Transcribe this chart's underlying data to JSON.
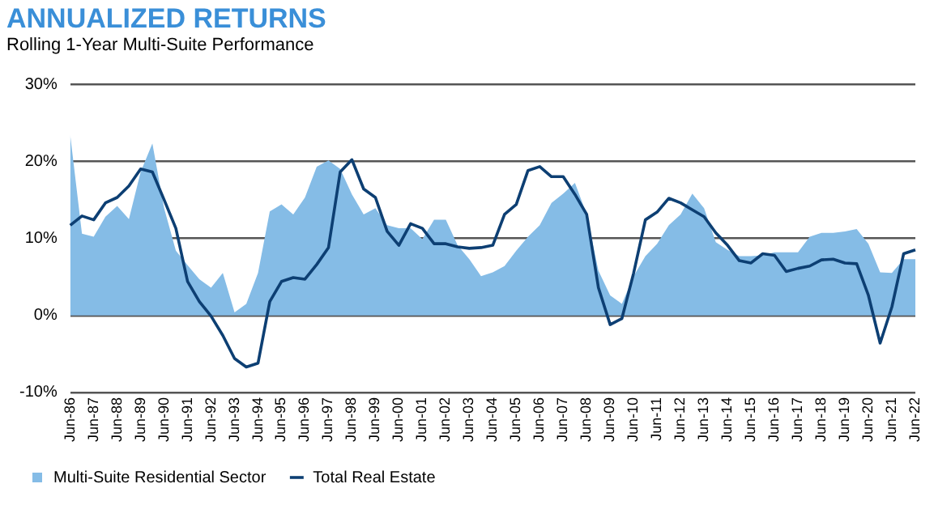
{
  "chart_data": {
    "type": "line",
    "title": "ANNUALIZED RETURNS",
    "subtitle": "Rolling 1-Year Multi-Suite Performance",
    "categories": [
      "Jun-86",
      null,
      "Jun-87",
      null,
      "Jun-88",
      null,
      "Jun-89",
      null,
      "Jun-90",
      null,
      "Jun-91",
      null,
      "Jun-92",
      null,
      "Jun-93",
      null,
      "Jun-94",
      null,
      "Jun-95",
      null,
      "Jun-96",
      null,
      "Jun-97",
      null,
      "Jun-98",
      null,
      "Jun-99",
      null,
      "Jun-00",
      null,
      "Jun-01",
      null,
      "Jun-02",
      null,
      "Jun-03",
      null,
      "Jun-04",
      null,
      "Jun-05",
      null,
      "Jun-06",
      null,
      "Jun-07",
      null,
      "Jun-08",
      null,
      "Jun-09",
      null,
      "Jun-10",
      null,
      "Jun-11",
      null,
      "Jun-12",
      null,
      "Jun-13",
      null,
      "Jun-14",
      null,
      "Jun-15",
      null,
      "Jun-16",
      null,
      "Jun-17",
      null,
      "Jun-18",
      null,
      "Jun-19",
      null,
      "Jun-20",
      null,
      "Jun-21",
      null,
      "Jun-22"
    ],
    "series": [
      {
        "name": "Multi-Suite Residential Sector",
        "type": "area",
        "color": "#85bce6",
        "values": [
          23.4,
          10.6,
          10.2,
          12.8,
          14.2,
          12.5,
          18.6,
          22.3,
          13.9,
          8.4,
          6.5,
          4.7,
          3.6,
          5.5,
          0.4,
          1.5,
          5.5,
          13.5,
          14.4,
          13.1,
          15.3,
          19.3,
          20.1,
          19.0,
          15.7,
          13.1,
          13.9,
          11.7,
          11.3,
          11.3,
          9.9,
          12.4,
          12.4,
          9.1,
          7.3,
          5.1,
          5.6,
          6.4,
          8.4,
          10.2,
          11.7,
          14.6,
          15.8,
          17.2,
          13.1,
          5.8,
          2.6,
          1.5,
          5.1,
          7.7,
          9.3,
          11.7,
          13.1,
          15.8,
          13.9,
          9.5,
          8.5,
          7.7,
          7.7,
          7.8,
          8.2,
          8.2,
          8.2,
          10.2,
          10.7,
          10.7,
          10.9,
          11.2,
          9.3,
          5.6,
          5.5,
          7.3,
          7.3
        ]
      },
      {
        "name": "Total Real Estate",
        "color": "#0d3f73",
        "values": [
          11.7,
          12.9,
          12.4,
          14.6,
          15.3,
          16.8,
          19.0,
          18.6,
          15.0,
          11.3,
          4.4,
          1.8,
          -0.1,
          -2.6,
          -5.6,
          -6.7,
          -6.2,
          1.8,
          4.4,
          4.9,
          4.7,
          6.6,
          8.8,
          18.6,
          20.2,
          16.4,
          15.3,
          10.9,
          9.1,
          11.9,
          11.3,
          9.3,
          9.3,
          8.9,
          8.7,
          8.8,
          9.1,
          13.1,
          14.4,
          18.8,
          19.3,
          18.0,
          18.0,
          15.7,
          13.1,
          3.6,
          -1.2,
          -0.4,
          5.5,
          12.4,
          13.4,
          15.2,
          14.6,
          13.7,
          12.8,
          10.7,
          9.1,
          7.1,
          6.8,
          8.0,
          7.8,
          5.7,
          6.1,
          6.4,
          7.2,
          7.3,
          6.8,
          6.7,
          2.6,
          -3.6,
          1.1,
          8.0,
          8.5
        ]
      }
    ],
    "ylim": [
      -10,
      30
    ],
    "yticks": [
      {
        "value": -10,
        "label": "-10%"
      },
      {
        "value": 0,
        "label": "0%"
      },
      {
        "value": 10,
        "label": "10%"
      },
      {
        "value": 20,
        "label": "20%"
      },
      {
        "value": 30,
        "label": "30%"
      }
    ],
    "grid": "y",
    "legend": "bottom",
    "marker": "none",
    "line_style": "solid"
  }
}
